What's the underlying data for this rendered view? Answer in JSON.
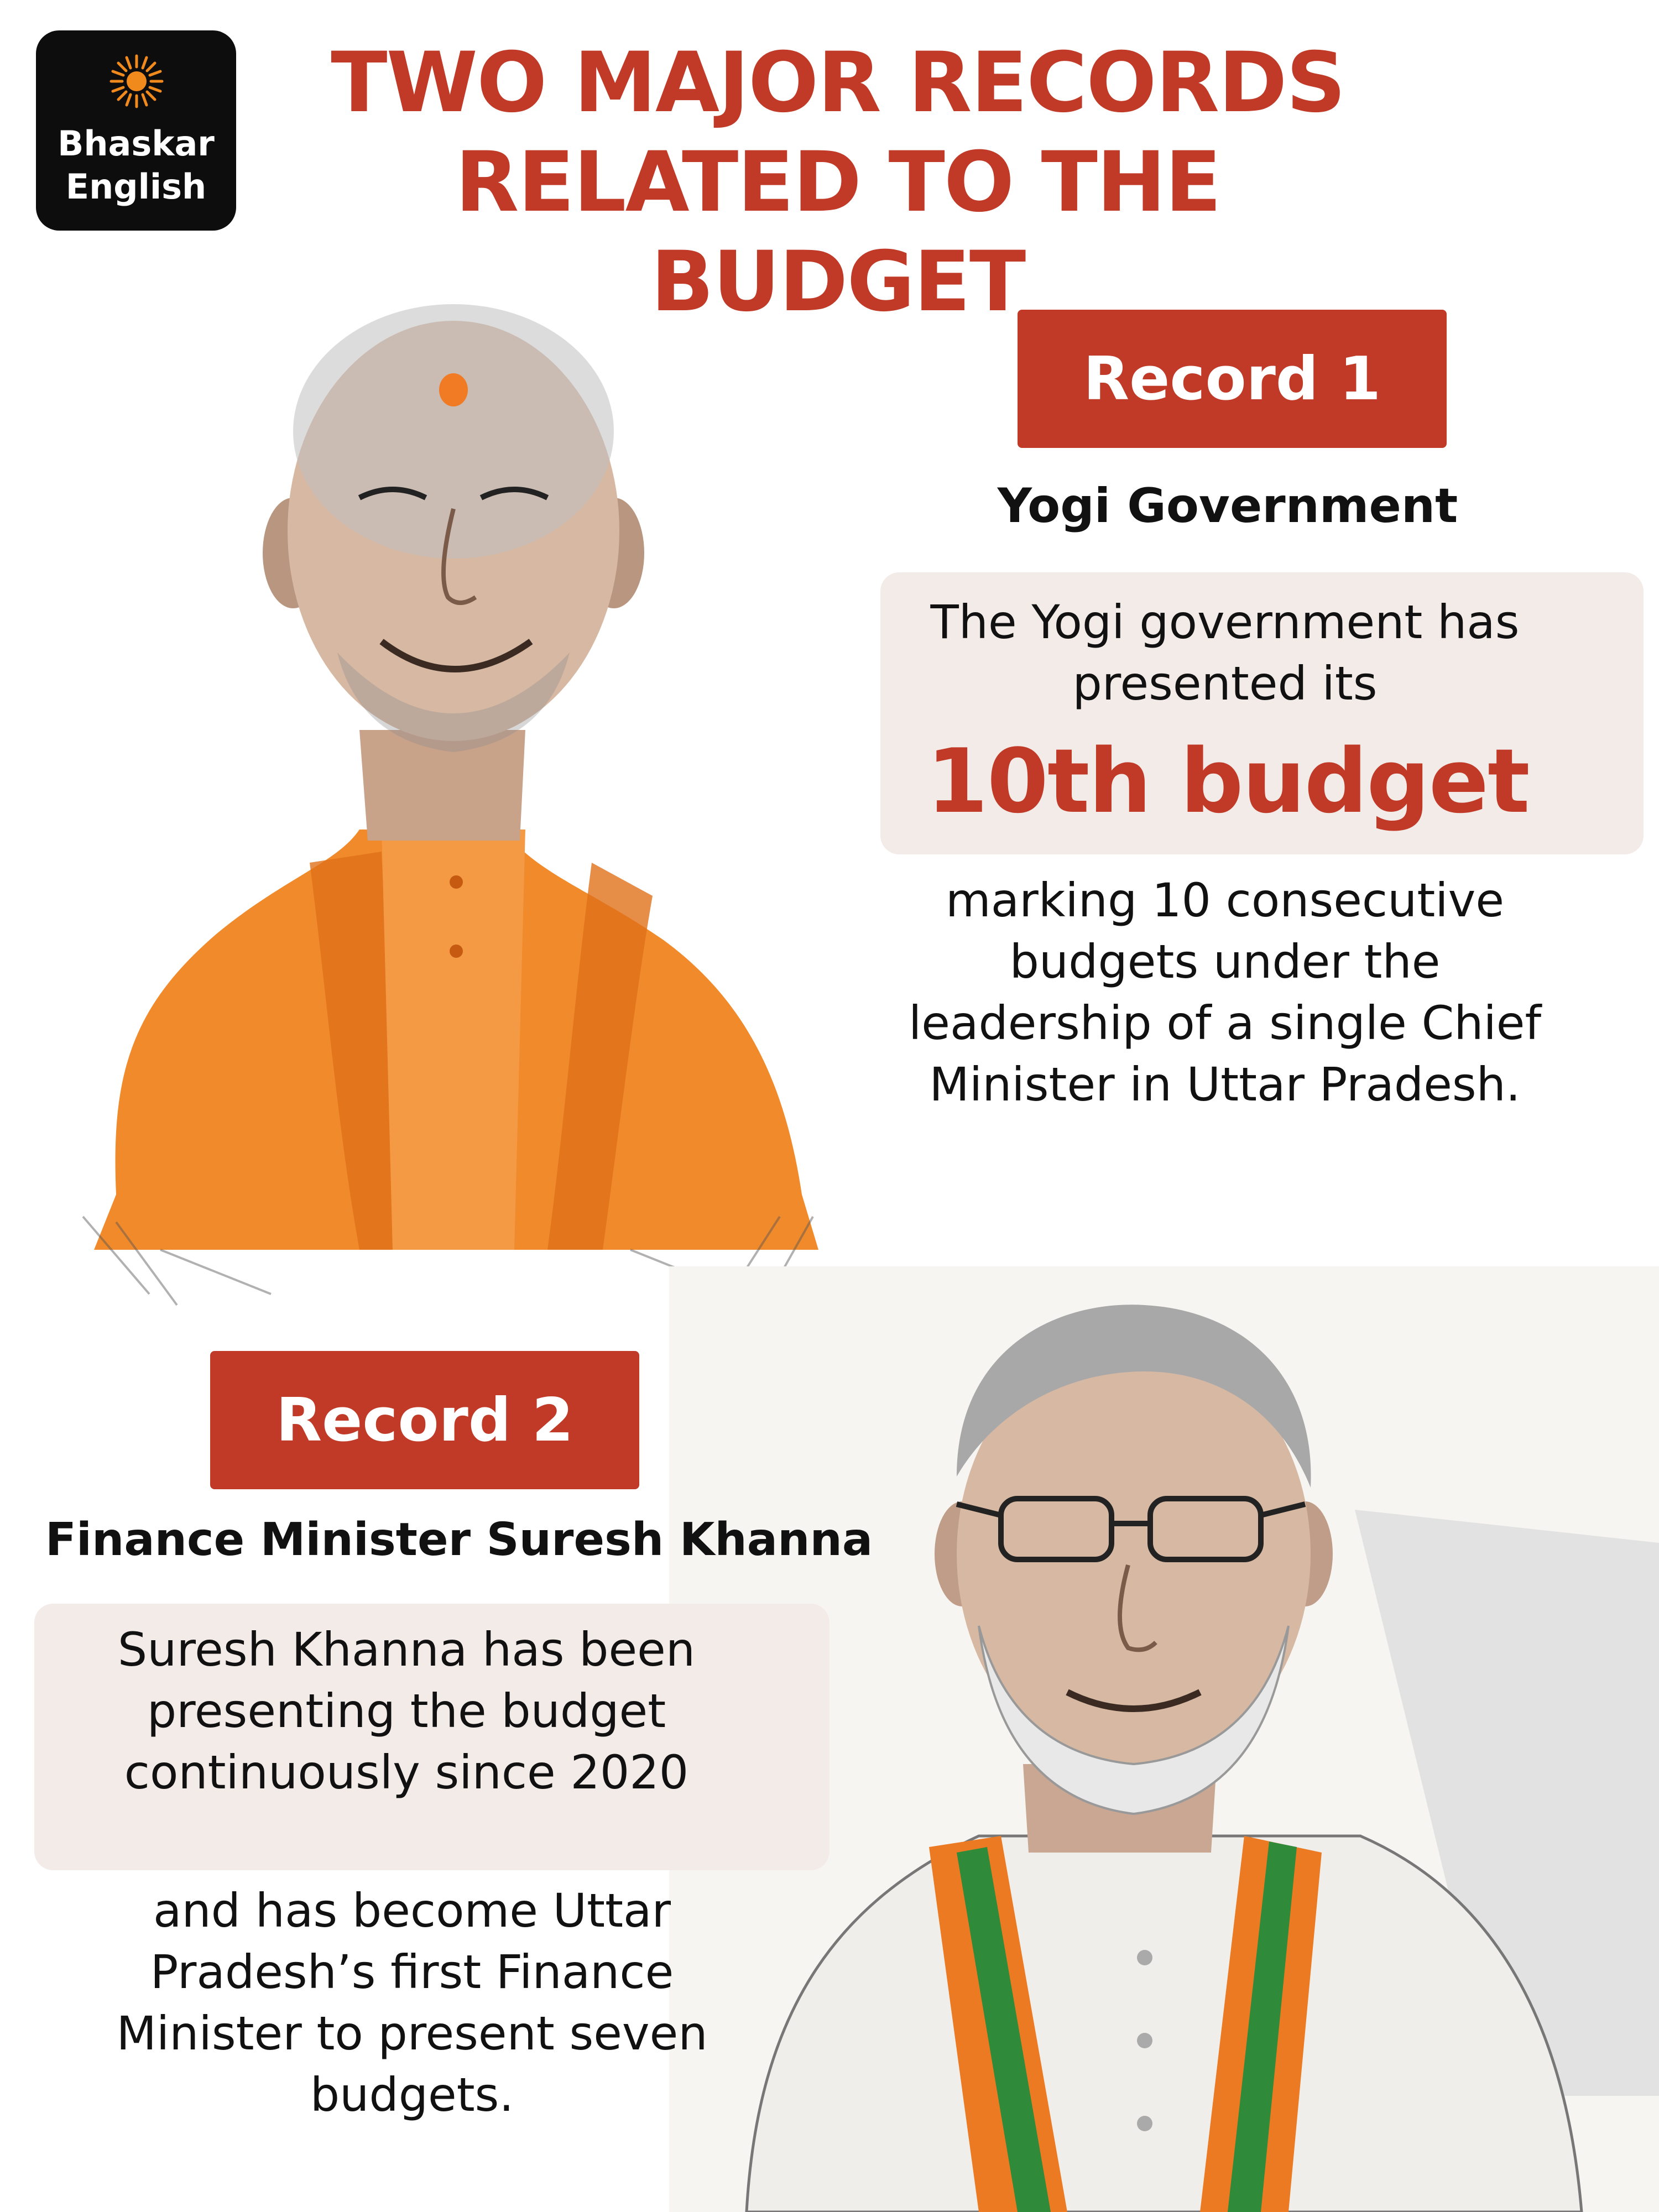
{
  "logo": {
    "line1": "Bhaskar",
    "line2": "English",
    "icon": "sun-icon",
    "background": "#0d0d0d",
    "icon_color": "#f08a1c"
  },
  "title": "TWO MAJOR RECORDS RELATED TO THE BUDGET",
  "colors": {
    "accent": "#c03a27",
    "panel": "#f3ebe8",
    "saffron": "#f08a2a"
  },
  "record1": {
    "badge": "Record 1",
    "heading": "Yogi Government",
    "intro": "The Yogi government has presented its",
    "highlight": "10th budget",
    "detail": "marking 10 consecutive budgets under the leadership of a single Chief Minister in Uttar Pradesh."
  },
  "record2": {
    "badge": "Record 2",
    "heading": "Finance Minister Suresh Khanna",
    "intro": "Suresh Khanna has been presenting the budget continuously since 2020",
    "detail": "and has become Uttar Pradesh’s first Finance Minister to present seven budgets."
  }
}
